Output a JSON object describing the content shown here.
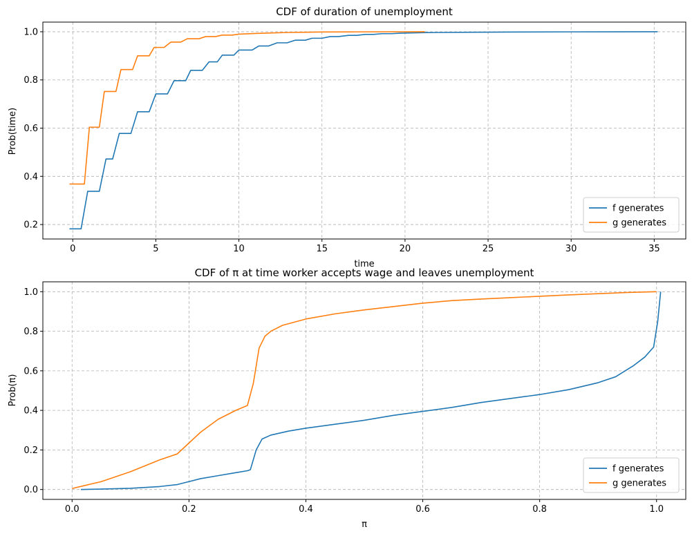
{
  "chart_data": [
    {
      "type": "line",
      "title": "CDF of duration of unemployment",
      "xlabel": "time",
      "ylabel": "Prob(time)",
      "xlim": [
        -1.8,
        36.9
      ],
      "ylim": [
        0.14,
        1.04
      ],
      "xticks": [
        0,
        5,
        10,
        15,
        20,
        25,
        30,
        35
      ],
      "yticks": [
        0.2,
        0.4,
        0.6,
        0.8,
        1.0
      ],
      "xtick_labels": [
        "0",
        "5",
        "10",
        "15",
        "20",
        "25",
        "30",
        "35"
      ],
      "ytick_labels": [
        "0.2",
        "0.4",
        "0.6",
        "0.8",
        "1.0"
      ],
      "grid": true,
      "legend_position": "lower right",
      "series": [
        {
          "name": "f generates",
          "color": "#1f77b4",
          "x": [
            -0.2,
            0.5,
            0.9,
            1.6,
            2.0,
            2.4,
            2.8,
            3.5,
            3.9,
            4.6,
            5.0,
            5.7,
            6.1,
            6.8,
            7.1,
            7.8,
            8.2,
            8.7,
            9.0,
            9.7,
            10.0,
            10.8,
            11.2,
            11.8,
            12.3,
            12.9,
            13.4,
            14.0,
            14.4,
            15.0,
            15.5,
            16.0,
            16.6,
            17.1,
            17.6,
            18.1,
            18.6,
            19.2,
            19.7,
            20.3,
            21.0,
            22.0,
            24.0,
            27.0,
            30.0,
            35.2
          ],
          "y": [
            0.182,
            0.182,
            0.338,
            0.338,
            0.472,
            0.472,
            0.578,
            0.578,
            0.668,
            0.668,
            0.742,
            0.742,
            0.797,
            0.797,
            0.84,
            0.84,
            0.875,
            0.875,
            0.903,
            0.903,
            0.924,
            0.924,
            0.941,
            0.941,
            0.954,
            0.954,
            0.965,
            0.965,
            0.973,
            0.973,
            0.98,
            0.98,
            0.985,
            0.985,
            0.989,
            0.989,
            0.992,
            0.992,
            0.994,
            0.995,
            0.996,
            0.997,
            0.998,
            0.999,
            0.9995,
            1.0
          ]
        },
        {
          "name": "g generates",
          "color": "#ff7f0e",
          "x": [
            -0.2,
            0.7,
            1.0,
            1.6,
            1.9,
            2.6,
            2.9,
            3.6,
            3.9,
            4.6,
            4.9,
            5.5,
            5.9,
            6.5,
            6.9,
            7.6,
            8.0,
            8.6,
            9.0,
            9.6,
            10.0,
            11.0,
            12.0,
            13.0,
            14.0,
            15.0,
            17.0,
            21.2
          ],
          "y": [
            0.368,
            0.368,
            0.604,
            0.604,
            0.752,
            0.752,
            0.843,
            0.843,
            0.9,
            0.9,
            0.935,
            0.935,
            0.957,
            0.957,
            0.971,
            0.971,
            0.98,
            0.98,
            0.986,
            0.986,
            0.99,
            0.993,
            0.995,
            0.997,
            0.998,
            0.999,
            0.9995,
            1.0
          ]
        }
      ]
    },
    {
      "type": "line",
      "title": "CDF of π at time worker accepts wage and leaves unemployment",
      "xlabel": "π",
      "ylabel": "Prob(π)",
      "xlim": [
        -0.05,
        1.05
      ],
      "ylim": [
        -0.05,
        1.05
      ],
      "xticks": [
        0.0,
        0.2,
        0.4,
        0.6,
        0.8,
        1.0
      ],
      "yticks": [
        0.0,
        0.2,
        0.4,
        0.6,
        0.8,
        1.0
      ],
      "xtick_labels": [
        "0.0",
        "0.2",
        "0.4",
        "0.6",
        "0.8",
        "1.0"
      ],
      "ytick_labels": [
        "0.0",
        "0.2",
        "0.4",
        "0.6",
        "0.8",
        "1.0"
      ],
      "grid": true,
      "legend_position": "lower right",
      "series": [
        {
          "name": "f generates",
          "color": "#1f77b4",
          "x": [
            0.015,
            0.05,
            0.1,
            0.15,
            0.18,
            0.2,
            0.22,
            0.25,
            0.28,
            0.3,
            0.305,
            0.315,
            0.325,
            0.34,
            0.37,
            0.4,
            0.45,
            0.5,
            0.55,
            0.6,
            0.65,
            0.7,
            0.75,
            0.8,
            0.85,
            0.9,
            0.93,
            0.96,
            0.98,
            0.995,
            1.002,
            1.007
          ],
          "y": [
            0.0,
            0.002,
            0.006,
            0.015,
            0.025,
            0.04,
            0.055,
            0.07,
            0.085,
            0.095,
            0.1,
            0.2,
            0.255,
            0.275,
            0.295,
            0.31,
            0.33,
            0.35,
            0.375,
            0.395,
            0.415,
            0.44,
            0.46,
            0.48,
            0.505,
            0.54,
            0.57,
            0.625,
            0.67,
            0.72,
            0.85,
            1.0
          ]
        },
        {
          "name": "g generates",
          "color": "#ff7f0e",
          "x": [
            0.0,
            0.05,
            0.1,
            0.15,
            0.18,
            0.2,
            0.22,
            0.25,
            0.28,
            0.3,
            0.31,
            0.32,
            0.33,
            0.34,
            0.36,
            0.4,
            0.45,
            0.5,
            0.55,
            0.6,
            0.65,
            0.7,
            0.75,
            0.8,
            0.85,
            0.9,
            0.95,
            1.0
          ],
          "y": [
            0.005,
            0.04,
            0.09,
            0.15,
            0.18,
            0.235,
            0.29,
            0.355,
            0.4,
            0.425,
            0.535,
            0.715,
            0.775,
            0.8,
            0.83,
            0.862,
            0.888,
            0.908,
            0.925,
            0.942,
            0.955,
            0.963,
            0.97,
            0.977,
            0.984,
            0.99,
            0.996,
            1.0
          ]
        }
      ]
    }
  ]
}
